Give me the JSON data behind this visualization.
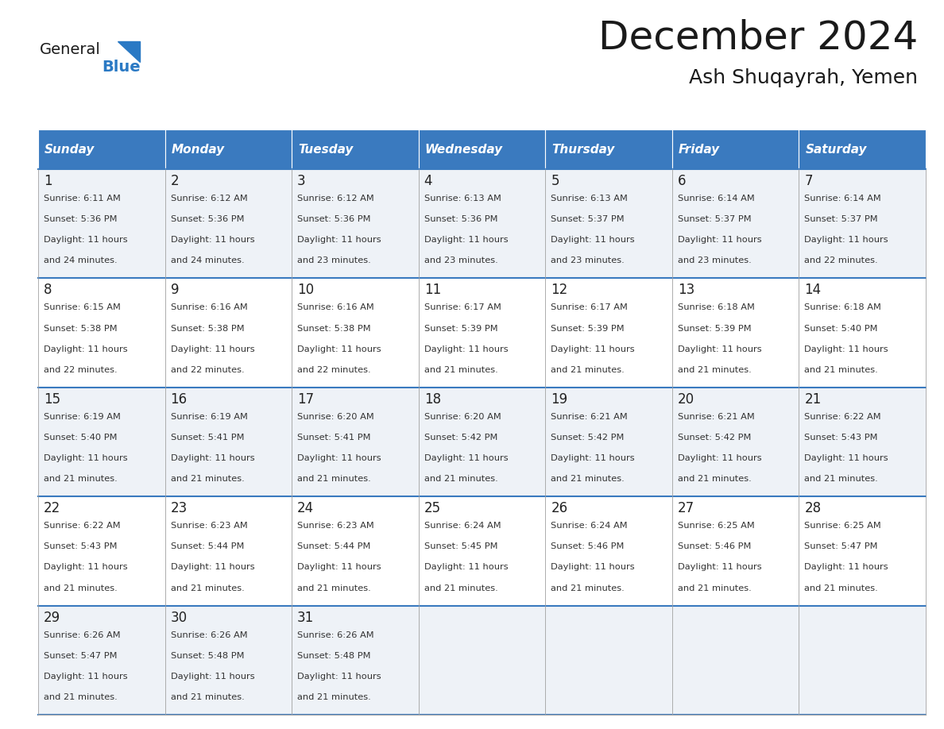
{
  "title": "December 2024",
  "subtitle": "Ash Shuqayrah, Yemen",
  "days_of_week": [
    "Sunday",
    "Monday",
    "Tuesday",
    "Wednesday",
    "Thursday",
    "Friday",
    "Saturday"
  ],
  "header_bg": "#3a7abf",
  "header_text": "#ffffff",
  "row_bg_odd": "#eef2f7",
  "row_bg_even": "#ffffff",
  "cell_border": "#aaaaaa",
  "day_num_color": "#222222",
  "info_text_color": "#333333",
  "title_color": "#1a1a1a",
  "subtitle_color": "#1a1a1a",
  "blue_color": "#2a79c4",
  "calendar_data": [
    [
      {
        "day": 1,
        "sunrise": "6:11 AM",
        "sunset": "5:36 PM",
        "daylight": "11 hours and 24 minutes."
      },
      {
        "day": 2,
        "sunrise": "6:12 AM",
        "sunset": "5:36 PM",
        "daylight": "11 hours and 24 minutes."
      },
      {
        "day": 3,
        "sunrise": "6:12 AM",
        "sunset": "5:36 PM",
        "daylight": "11 hours and 23 minutes."
      },
      {
        "day": 4,
        "sunrise": "6:13 AM",
        "sunset": "5:36 PM",
        "daylight": "11 hours and 23 minutes."
      },
      {
        "day": 5,
        "sunrise": "6:13 AM",
        "sunset": "5:37 PM",
        "daylight": "11 hours and 23 minutes."
      },
      {
        "day": 6,
        "sunrise": "6:14 AM",
        "sunset": "5:37 PM",
        "daylight": "11 hours and 23 minutes."
      },
      {
        "day": 7,
        "sunrise": "6:14 AM",
        "sunset": "5:37 PM",
        "daylight": "11 hours and 22 minutes."
      }
    ],
    [
      {
        "day": 8,
        "sunrise": "6:15 AM",
        "sunset": "5:38 PM",
        "daylight": "11 hours and 22 minutes."
      },
      {
        "day": 9,
        "sunrise": "6:16 AM",
        "sunset": "5:38 PM",
        "daylight": "11 hours and 22 minutes."
      },
      {
        "day": 10,
        "sunrise": "6:16 AM",
        "sunset": "5:38 PM",
        "daylight": "11 hours and 22 minutes."
      },
      {
        "day": 11,
        "sunrise": "6:17 AM",
        "sunset": "5:39 PM",
        "daylight": "11 hours and 21 minutes."
      },
      {
        "day": 12,
        "sunrise": "6:17 AM",
        "sunset": "5:39 PM",
        "daylight": "11 hours and 21 minutes."
      },
      {
        "day": 13,
        "sunrise": "6:18 AM",
        "sunset": "5:39 PM",
        "daylight": "11 hours and 21 minutes."
      },
      {
        "day": 14,
        "sunrise": "6:18 AM",
        "sunset": "5:40 PM",
        "daylight": "11 hours and 21 minutes."
      }
    ],
    [
      {
        "day": 15,
        "sunrise": "6:19 AM",
        "sunset": "5:40 PM",
        "daylight": "11 hours and 21 minutes."
      },
      {
        "day": 16,
        "sunrise": "6:19 AM",
        "sunset": "5:41 PM",
        "daylight": "11 hours and 21 minutes."
      },
      {
        "day": 17,
        "sunrise": "6:20 AM",
        "sunset": "5:41 PM",
        "daylight": "11 hours and 21 minutes."
      },
      {
        "day": 18,
        "sunrise": "6:20 AM",
        "sunset": "5:42 PM",
        "daylight": "11 hours and 21 minutes."
      },
      {
        "day": 19,
        "sunrise": "6:21 AM",
        "sunset": "5:42 PM",
        "daylight": "11 hours and 21 minutes."
      },
      {
        "day": 20,
        "sunrise": "6:21 AM",
        "sunset": "5:42 PM",
        "daylight": "11 hours and 21 minutes."
      },
      {
        "day": 21,
        "sunrise": "6:22 AM",
        "sunset": "5:43 PM",
        "daylight": "11 hours and 21 minutes."
      }
    ],
    [
      {
        "day": 22,
        "sunrise": "6:22 AM",
        "sunset": "5:43 PM",
        "daylight": "11 hours and 21 minutes."
      },
      {
        "day": 23,
        "sunrise": "6:23 AM",
        "sunset": "5:44 PM",
        "daylight": "11 hours and 21 minutes."
      },
      {
        "day": 24,
        "sunrise": "6:23 AM",
        "sunset": "5:44 PM",
        "daylight": "11 hours and 21 minutes."
      },
      {
        "day": 25,
        "sunrise": "6:24 AM",
        "sunset": "5:45 PM",
        "daylight": "11 hours and 21 minutes."
      },
      {
        "day": 26,
        "sunrise": "6:24 AM",
        "sunset": "5:46 PM",
        "daylight": "11 hours and 21 minutes."
      },
      {
        "day": 27,
        "sunrise": "6:25 AM",
        "sunset": "5:46 PM",
        "daylight": "11 hours and 21 minutes."
      },
      {
        "day": 28,
        "sunrise": "6:25 AM",
        "sunset": "5:47 PM",
        "daylight": "11 hours and 21 minutes."
      }
    ],
    [
      {
        "day": 29,
        "sunrise": "6:26 AM",
        "sunset": "5:47 PM",
        "daylight": "11 hours and 21 minutes."
      },
      {
        "day": 30,
        "sunrise": "6:26 AM",
        "sunset": "5:48 PM",
        "daylight": "11 hours and 21 minutes."
      },
      {
        "day": 31,
        "sunrise": "6:26 AM",
        "sunset": "5:48 PM",
        "daylight": "11 hours and 21 minutes."
      },
      null,
      null,
      null,
      null
    ]
  ]
}
